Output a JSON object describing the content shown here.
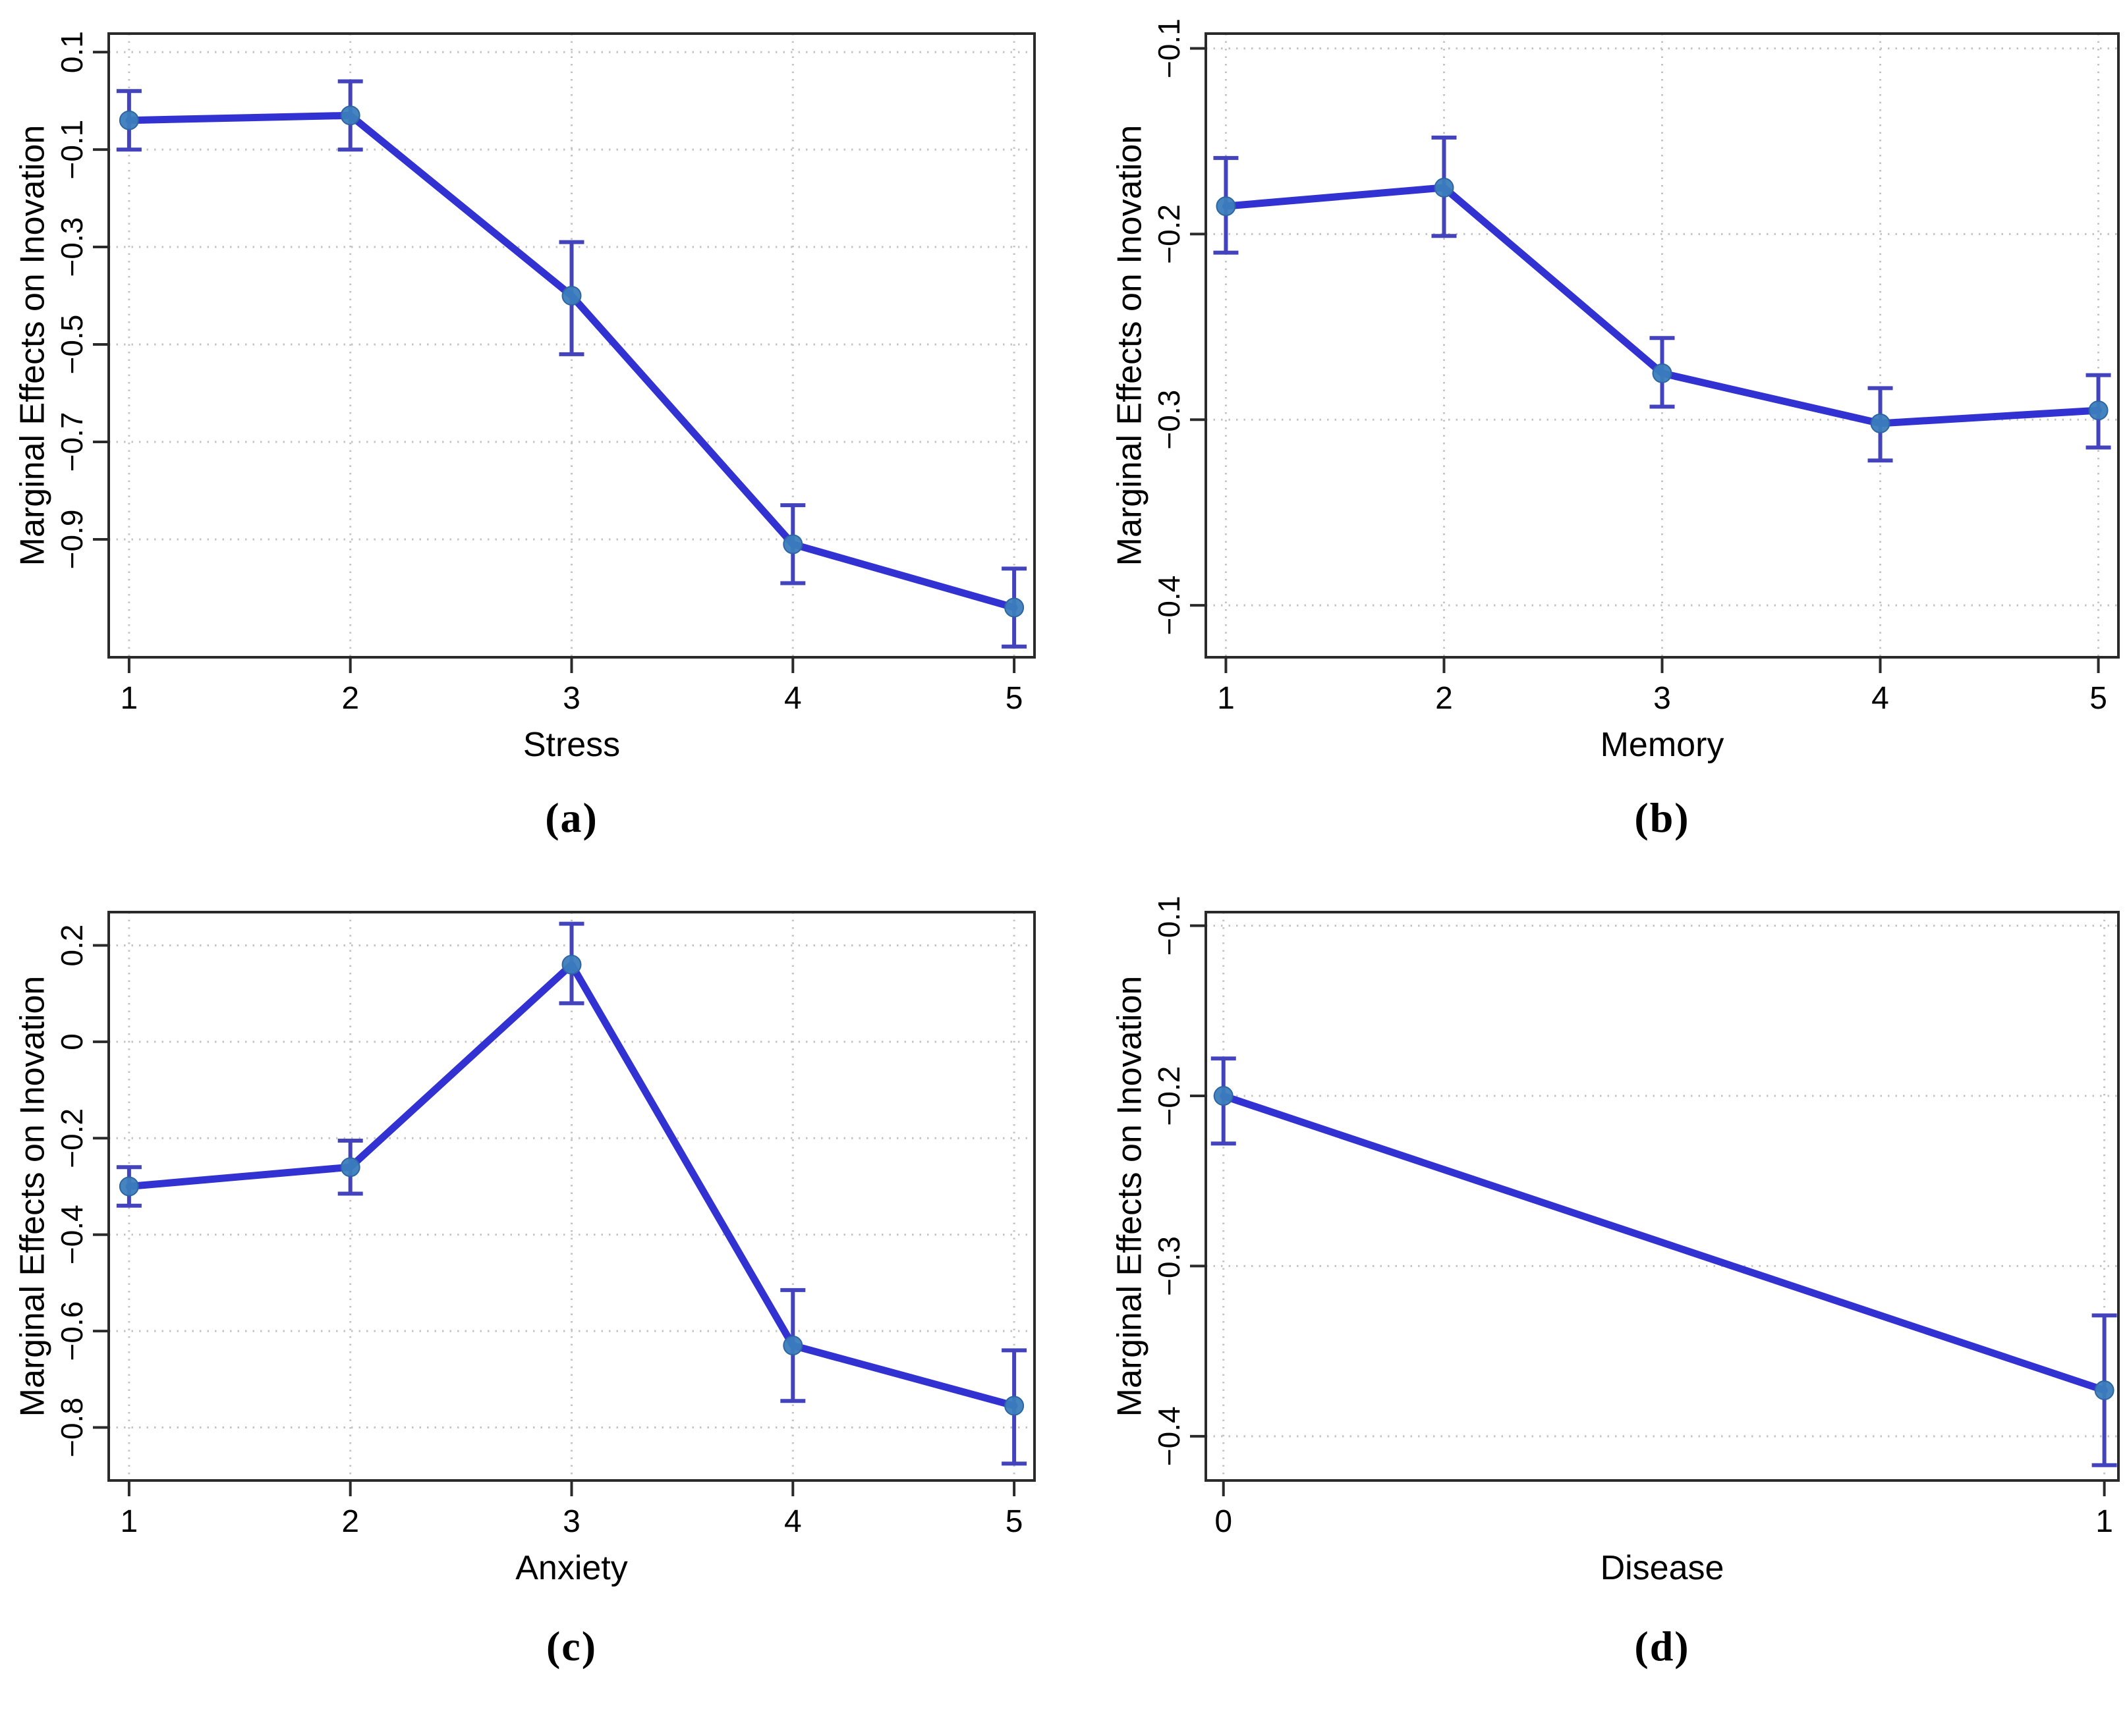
{
  "figure": {
    "background": "#ffffff",
    "colors": {
      "line": "#3232d2",
      "error_bar": "#4343bd",
      "marker_fill": "#3c7dbd",
      "marker_edge": "#2d66a3",
      "grid": "#c4c4c4",
      "spine": "#2a2a2a",
      "text": "#000000"
    }
  },
  "chart_data": [
    {
      "type": "line",
      "panel": "a",
      "caption": "(a)",
      "title": "",
      "xlabel": "Stress",
      "ylabel": "Marginal Effects on Inovation",
      "x": [
        1,
        2,
        3,
        4,
        5
      ],
      "y": [
        -0.04,
        -0.03,
        -0.4,
        -0.91,
        -1.04
      ],
      "ci_low": [
        -0.1,
        -0.1,
        -0.52,
        -0.99,
        -1.12
      ],
      "ci_high": [
        0.02,
        0.04,
        -0.29,
        -0.83,
        -0.96
      ],
      "xtick_values": [
        1,
        2,
        3,
        4,
        5
      ],
      "xtick_labels": [
        "1",
        "2",
        "3",
        "4",
        "5"
      ],
      "ytick_values": [
        0.1,
        -0.1,
        -0.3,
        -0.5,
        -0.7,
        -0.9
      ],
      "ytick_labels": [
        "0.1",
        "−0.1",
        "−0.3",
        "−0.5",
        "−0.7",
        "−0.9"
      ],
      "xlim": [
        0.908,
        5.092
      ],
      "ylim": [
        -1.142,
        0.138
      ],
      "grid": true,
      "legend": null
    },
    {
      "type": "line",
      "panel": "b",
      "caption": "(b)",
      "title": "",
      "xlabel": "Memory",
      "ylabel": "Marginal Effects on Inovation",
      "x": [
        1,
        2,
        3,
        4,
        5
      ],
      "y": [
        -0.185,
        -0.175,
        -0.275,
        -0.302,
        -0.295
      ],
      "ci_low": [
        -0.21,
        -0.201,
        -0.293,
        -0.322,
        -0.315
      ],
      "ci_high": [
        -0.159,
        -0.148,
        -0.256,
        -0.283,
        -0.276
      ],
      "xtick_values": [
        1,
        2,
        3,
        4,
        5
      ],
      "xtick_labels": [
        "1",
        "2",
        "3",
        "4",
        "5"
      ],
      "ytick_values": [
        -0.1,
        -0.2,
        -0.3,
        -0.4
      ],
      "ytick_labels": [
        "−0.1",
        "−0.2",
        "−0.3",
        "−0.4"
      ],
      "xlim": [
        0.908,
        5.092
      ],
      "ylim": [
        -0.428,
        -0.092
      ],
      "grid": true,
      "legend": null
    },
    {
      "type": "line",
      "panel": "c",
      "caption": "(c)",
      "title": "",
      "xlabel": "Anxiety",
      "ylabel": "Marginal Effects on Inovation",
      "x": [
        1,
        2,
        3,
        4,
        5
      ],
      "y": [
        -0.3,
        -0.26,
        0.16,
        -0.63,
        -0.755
      ],
      "ci_low": [
        -0.34,
        -0.315,
        0.08,
        -0.745,
        -0.875
      ],
      "ci_high": [
        -0.26,
        -0.205,
        0.245,
        -0.515,
        -0.64
      ],
      "xtick_values": [
        1,
        2,
        3,
        4,
        5
      ],
      "xtick_labels": [
        "1",
        "2",
        "3",
        "4",
        "5"
      ],
      "ytick_values": [
        0.2,
        0,
        -0.2,
        -0.4,
        -0.6,
        -0.8
      ],
      "ytick_labels": [
        "0.2",
        "0",
        "−0.2",
        "−0.4",
        "−0.6",
        "−0.8"
      ],
      "xlim": [
        0.908,
        5.092
      ],
      "ylim": [
        -0.91,
        0.269
      ],
      "grid": true,
      "legend": null
    },
    {
      "type": "line",
      "panel": "d",
      "caption": "(d)",
      "title": "",
      "xlabel": "Disease",
      "ylabel": "Marginal Effects on Inovation",
      "x": [
        0,
        1
      ],
      "y": [
        -0.2,
        -0.373
      ],
      "ci_low": [
        -0.228,
        -0.417
      ],
      "ci_high": [
        -0.178,
        -0.329
      ],
      "xtick_values": [
        0,
        1
      ],
      "xtick_labels": [
        "0",
        "1"
      ],
      "ytick_values": [
        -0.1,
        -0.2,
        -0.3,
        -0.4
      ],
      "ytick_labels": [
        "−0.1",
        "−0.2",
        "−0.3",
        "−0.4"
      ],
      "xlim": [
        -0.02,
        1.016
      ],
      "ylim": [
        -0.426,
        -0.092
      ],
      "grid": true,
      "legend": null
    }
  ]
}
